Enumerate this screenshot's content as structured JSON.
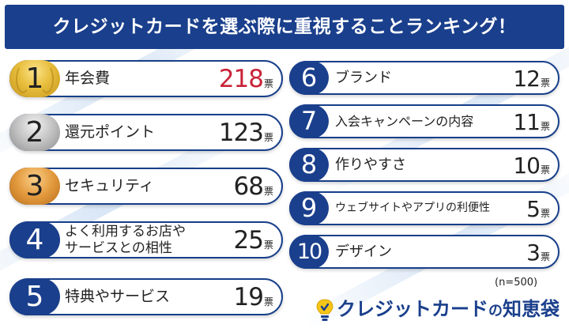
{
  "title": "クレジットカードを選ぶ際に重視することランキング！",
  "unit": "票",
  "sample_note": "(n=500)",
  "logo": {
    "text_main": "クレジットカード",
    "text_no": "の",
    "text_end": "知恵袋"
  },
  "colors": {
    "navy": "#1a3f8c",
    "highlight_red": "#c8243a",
    "gold": "#e8be3d",
    "silver": "#bdbdbd",
    "bronze": "#e39a3e"
  },
  "ranking": [
    {
      "rank": "1",
      "label": "年会費",
      "count": "218"
    },
    {
      "rank": "2",
      "label": "還元ポイント",
      "count": "123"
    },
    {
      "rank": "3",
      "label": "セキュリティ",
      "count": "68"
    },
    {
      "rank": "4",
      "label_line1": "よく利用するお店や",
      "label_line2": "サービスとの相性",
      "count": "25"
    },
    {
      "rank": "5",
      "label": "特典やサービス",
      "count": "19"
    },
    {
      "rank": "6",
      "label": "ブランド",
      "count": "12"
    },
    {
      "rank": "7",
      "label": "入会キャンペーンの内容",
      "count": "11"
    },
    {
      "rank": "8",
      "label": "作りやすさ",
      "count": "10"
    },
    {
      "rank": "9",
      "label": "ウェブサイトやアプリの利便性",
      "count": "5"
    },
    {
      "rank": "10",
      "label": "デザイン",
      "count": "3"
    }
  ]
}
